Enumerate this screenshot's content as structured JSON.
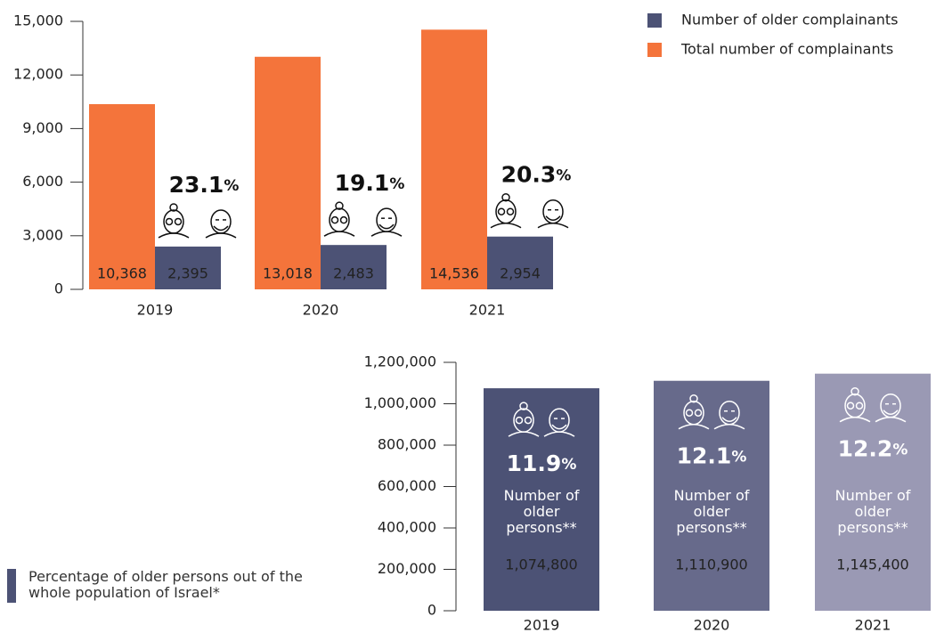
{
  "chart_data": [
    {
      "type": "bar",
      "categories": [
        "2019",
        "2020",
        "2021"
      ],
      "series": [
        {
          "name": "Total number of complainants",
          "color": "#f4743b",
          "values": [
            10368,
            13018,
            14536
          ],
          "value_labels": [
            "10,368",
            "13,018",
            "14,536"
          ]
        },
        {
          "name": "Number of older complainants",
          "color": "#4c5275",
          "values": [
            2395,
            2483,
            2954
          ],
          "value_labels": [
            "2,395",
            "2,483",
            "2,954"
          ]
        }
      ],
      "annotations": [
        "23.1%",
        "19.1%",
        "20.3%"
      ],
      "ylim": [
        0,
        15000
      ],
      "yticks": [
        0,
        {
          "value": 3000,
          "label": "3,000"
        },
        {
          "value": 6000,
          "label": "6,000"
        },
        {
          "value": 9000,
          "label": "9,000"
        },
        {
          "value": 12000,
          "label": "12,000"
        },
        {
          "value": 15000,
          "label": "15,000"
        }
      ],
      "legend": "top-right"
    },
    {
      "type": "bar",
      "categories": [
        "2019",
        "2020",
        "2021"
      ],
      "values": [
        1074800,
        1110900,
        1145400
      ],
      "value_labels": [
        "1,074,800",
        "1,110,900",
        "1,145,400"
      ],
      "colors": [
        "#4c5275",
        "#676a8b",
        "#9a99b4"
      ],
      "annotations": [
        "11.9%",
        "12.1%",
        "12.2%"
      ],
      "bar_label": "Number of older persons**",
      "legend_text": "Percentage of older persons out of the whole population of Israel*",
      "ylim": [
        0,
        1200000
      ],
      "yticks": [
        0,
        {
          "value": 200000,
          "label": "200,000"
        },
        {
          "value": 400000,
          "label": "400,000"
        },
        {
          "value": 600000,
          "label": "600,000"
        },
        {
          "value": 800000,
          "label": "800,000"
        },
        {
          "value": 1000000,
          "label": "1,000,000"
        },
        {
          "value": 1200000,
          "label": "1,200,000"
        }
      ]
    }
  ]
}
